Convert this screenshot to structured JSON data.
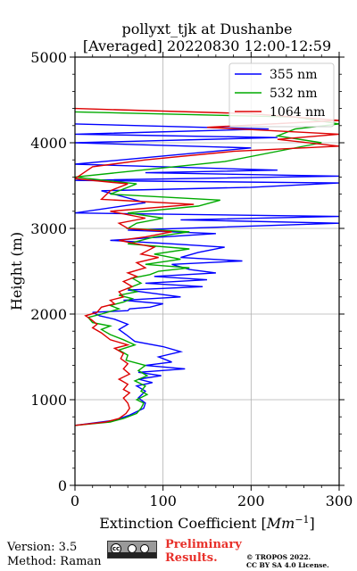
{
  "chart_data": {
    "type": "line",
    "title": [
      "pollyxt_tjk at Dushanbe",
      "[Averaged] 20220830 12:00-12:59"
    ],
    "xlabel": "Extinction Coefficient",
    "xlabel_unit": "Mm",
    "xlabel_exp": "−1",
    "ylabel": "Height (m)",
    "xlim": [
      0,
      300
    ],
    "ylim": [
      0,
      5000
    ],
    "xticks": [
      0,
      100,
      200,
      300
    ],
    "xticklabels": [
      "0",
      "100",
      "200",
      "300"
    ],
    "yticks": [
      0,
      1000,
      2000,
      3000,
      4000,
      5000
    ],
    "yticklabels": [
      "0",
      "1000",
      "2000",
      "3000",
      "4000",
      "5000"
    ],
    "grid": true,
    "legend_position": "top-right",
    "series": [
      {
        "name": "355 nm",
        "color": "#0000ff",
        "points": [
          [
            0,
            700
          ],
          [
            45,
            760
          ],
          [
            62,
            820
          ],
          [
            78,
            900
          ],
          [
            80,
            960
          ],
          [
            72,
            1020
          ],
          [
            80,
            1100
          ],
          [
            70,
            1160
          ],
          [
            88,
            1200
          ],
          [
            72,
            1240
          ],
          [
            98,
            1280
          ],
          [
            72,
            1320
          ],
          [
            125,
            1360
          ],
          [
            80,
            1400
          ],
          [
            110,
            1440
          ],
          [
            95,
            1500
          ],
          [
            120,
            1560
          ],
          [
            100,
            1620
          ],
          [
            68,
            1680
          ],
          [
            58,
            1760
          ],
          [
            50,
            1820
          ],
          [
            60,
            1880
          ],
          [
            45,
            1940
          ],
          [
            28,
            1980
          ],
          [
            20,
            2020
          ],
          [
            60,
            2040
          ],
          [
            62,
            2060
          ],
          [
            85,
            2080
          ],
          [
            100,
            2120
          ],
          [
            55,
            2160
          ],
          [
            120,
            2200
          ],
          [
            60,
            2280
          ],
          [
            145,
            2320
          ],
          [
            80,
            2360
          ],
          [
            150,
            2400
          ],
          [
            90,
            2440
          ],
          [
            160,
            2480
          ],
          [
            130,
            2520
          ],
          [
            110,
            2580
          ],
          [
            190,
            2620
          ],
          [
            120,
            2660
          ],
          [
            140,
            2720
          ],
          [
            170,
            2780
          ],
          [
            110,
            2820
          ],
          [
            40,
            2860
          ],
          [
            100,
            2900
          ],
          [
            160,
            2940
          ],
          [
            60,
            2980
          ],
          [
            300,
            3060
          ],
          [
            120,
            3100
          ],
          [
            300,
            3140
          ],
          [
            0,
            3180
          ],
          [
            80,
            3300
          ],
          [
            30,
            3440
          ],
          [
            200,
            3480
          ],
          [
            300,
            3530
          ],
          [
            0,
            3560
          ],
          [
            300,
            3610
          ],
          [
            80,
            3650
          ],
          [
            230,
            3680
          ],
          [
            0,
            3750
          ],
          [
            200,
            3940
          ],
          [
            0,
            4000
          ],
          [
            230,
            4060
          ],
          [
            0,
            4100
          ],
          [
            220,
            4160
          ],
          [
            0,
            4220
          ]
        ]
      },
      {
        "name": "532 nm",
        "color": "#00aa00",
        "points": [
          [
            0,
            700
          ],
          [
            40,
            740
          ],
          [
            55,
            780
          ],
          [
            70,
            840
          ],
          [
            75,
            900
          ],
          [
            78,
            960
          ],
          [
            70,
            1000
          ],
          [
            82,
            1060
          ],
          [
            75,
            1100
          ],
          [
            80,
            1160
          ],
          [
            68,
            1220
          ],
          [
            82,
            1280
          ],
          [
            72,
            1340
          ],
          [
            80,
            1400
          ],
          [
            58,
            1460
          ],
          [
            60,
            1520
          ],
          [
            50,
            1580
          ],
          [
            68,
            1640
          ],
          [
            55,
            1700
          ],
          [
            40,
            1760
          ],
          [
            30,
            1820
          ],
          [
            40,
            1860
          ],
          [
            20,
            1900
          ],
          [
            15,
            1960
          ],
          [
            30,
            2000
          ],
          [
            50,
            2060
          ],
          [
            40,
            2100
          ],
          [
            55,
            2140
          ],
          [
            65,
            2180
          ],
          [
            50,
            2220
          ],
          [
            70,
            2260
          ],
          [
            60,
            2300
          ],
          [
            75,
            2360
          ],
          [
            65,
            2420
          ],
          [
            85,
            2460
          ],
          [
            95,
            2500
          ],
          [
            130,
            2540
          ],
          [
            80,
            2580
          ],
          [
            120,
            2640
          ],
          [
            90,
            2700
          ],
          [
            130,
            2760
          ],
          [
            60,
            2820
          ],
          [
            90,
            2900
          ],
          [
            130,
            2960
          ],
          [
            60,
            3000
          ],
          [
            70,
            3060
          ],
          [
            100,
            3120
          ],
          [
            60,
            3180
          ],
          [
            140,
            3260
          ],
          [
            165,
            3330
          ],
          [
            40,
            3400
          ],
          [
            70,
            3520
          ],
          [
            0,
            3600
          ],
          [
            170,
            3780
          ],
          [
            280,
            4000
          ],
          [
            230,
            4080
          ],
          [
            250,
            4160
          ],
          [
            300,
            4220
          ],
          [
            250,
            4300
          ],
          [
            0,
            4360
          ]
        ]
      },
      {
        "name": "1064 nm",
        "color": "#dd0000",
        "points": [
          [
            0,
            700
          ],
          [
            35,
            740
          ],
          [
            50,
            780
          ],
          [
            58,
            840
          ],
          [
            62,
            900
          ],
          [
            60,
            960
          ],
          [
            55,
            1020
          ],
          [
            62,
            1080
          ],
          [
            55,
            1120
          ],
          [
            60,
            1180
          ],
          [
            50,
            1240
          ],
          [
            62,
            1300
          ],
          [
            55,
            1360
          ],
          [
            60,
            1420
          ],
          [
            52,
            1480
          ],
          [
            55,
            1540
          ],
          [
            45,
            1600
          ],
          [
            60,
            1640
          ],
          [
            40,
            1700
          ],
          [
            30,
            1780
          ],
          [
            20,
            1840
          ],
          [
            25,
            1880
          ],
          [
            18,
            1940
          ],
          [
            12,
            1980
          ],
          [
            25,
            2020
          ],
          [
            30,
            2080
          ],
          [
            45,
            2120
          ],
          [
            40,
            2160
          ],
          [
            55,
            2200
          ],
          [
            50,
            2260
          ],
          [
            65,
            2320
          ],
          [
            55,
            2380
          ],
          [
            70,
            2440
          ],
          [
            60,
            2480
          ],
          [
            80,
            2540
          ],
          [
            70,
            2600
          ],
          [
            95,
            2660
          ],
          [
            75,
            2700
          ],
          [
            90,
            2780
          ],
          [
            50,
            2860
          ],
          [
            80,
            2900
          ],
          [
            110,
            2960
          ],
          [
            60,
            3000
          ],
          [
            50,
            3060
          ],
          [
            80,
            3120
          ],
          [
            40,
            3200
          ],
          [
            135,
            3280
          ],
          [
            30,
            3340
          ],
          [
            40,
            3440
          ],
          [
            60,
            3520
          ],
          [
            0,
            3580
          ],
          [
            20,
            3720
          ],
          [
            80,
            3800
          ],
          [
            180,
            3900
          ],
          [
            300,
            3960
          ],
          [
            230,
            4040
          ],
          [
            300,
            4100
          ],
          [
            150,
            4180
          ],
          [
            300,
            4260
          ],
          [
            200,
            4340
          ],
          [
            0,
            4400
          ]
        ]
      }
    ]
  },
  "footer": {
    "version": "Version: 3.5",
    "method": "Method: Raman",
    "cc_text": "cc",
    "preliminary": [
      "Preliminary",
      "Results."
    ],
    "copyright": [
      "© TROPOS 2022.",
      "CC BY SA 4.0 License."
    ]
  }
}
